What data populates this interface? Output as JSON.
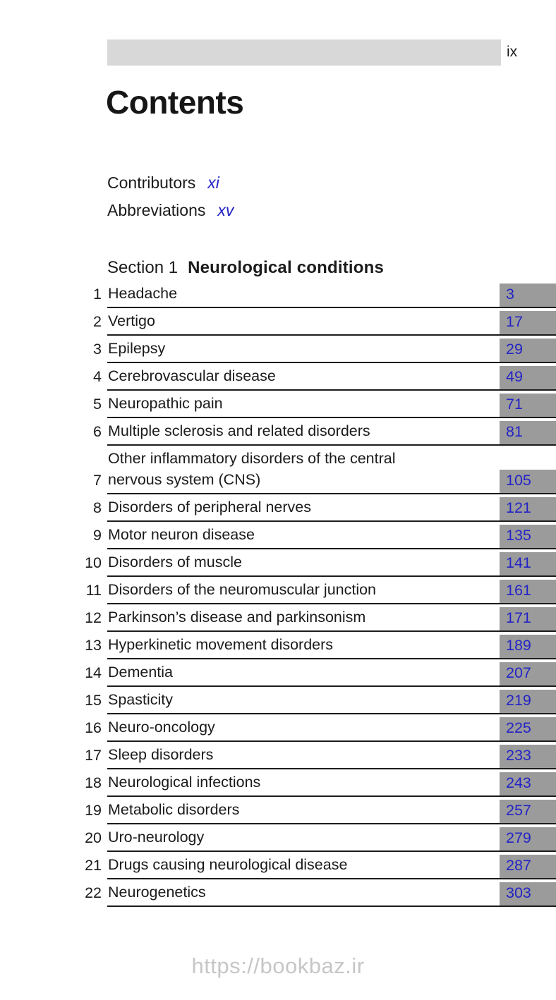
{
  "header": {
    "folio": "ix"
  },
  "title": "Contents",
  "front_matter": [
    {
      "label": "Contributors",
      "page": "xi"
    },
    {
      "label": "Abbreviations",
      "page": "xv"
    }
  ],
  "section": {
    "label": "Section 1",
    "title": "Neurological conditions"
  },
  "toc": {
    "entries": [
      {
        "number": "1",
        "title": "Headache",
        "page": "3"
      },
      {
        "number": "2",
        "title": "Vertigo",
        "page": "17"
      },
      {
        "number": "3",
        "title": "Epilepsy",
        "page": "29"
      },
      {
        "number": "4",
        "title": "Cerebrovascular disease",
        "page": "49"
      },
      {
        "number": "5",
        "title": "Neuropathic pain",
        "page": "71"
      },
      {
        "number": "6",
        "title": "Multiple sclerosis and related disorders",
        "page": "81"
      },
      {
        "number": "7",
        "title": "Other inflammatory disorders of the central\nnervous system (CNS)",
        "page": "105",
        "two_line": true
      },
      {
        "number": "8",
        "title": "Disorders of peripheral nerves",
        "page": "121"
      },
      {
        "number": "9",
        "title": "Motor neuron disease",
        "page": "135"
      },
      {
        "number": "10",
        "title": "Disorders of muscle",
        "page": "141"
      },
      {
        "number": "11",
        "title": "Disorders of the neuromuscular junction",
        "page": "161"
      },
      {
        "number": "12",
        "title": "Parkinson’s disease and parkinsonism",
        "page": "171"
      },
      {
        "number": "13",
        "title": "Hyperkinetic movement disorders",
        "page": "189"
      },
      {
        "number": "14",
        "title": "Dementia",
        "page": "207"
      },
      {
        "number": "15",
        "title": "Spasticity",
        "page": "219"
      },
      {
        "number": "16",
        "title": "Neuro-oncology",
        "page": "225"
      },
      {
        "number": "17",
        "title": "Sleep disorders",
        "page": "233"
      },
      {
        "number": "18",
        "title": "Neurological infections",
        "page": "243"
      },
      {
        "number": "19",
        "title": "Metabolic disorders",
        "page": "257"
      },
      {
        "number": "20",
        "title": "Uro-neurology",
        "page": "279"
      },
      {
        "number": "21",
        "title": "Drugs causing neurological disease",
        "page": "287"
      },
      {
        "number": "22",
        "title": "Neurogenetics",
        "page": "303"
      }
    ]
  },
  "watermark": "https://bookbaz.ir",
  "colors": {
    "page_link_blue": "#2424c6",
    "page_box_gray": "#9b9b9b",
    "header_bar_gray": "#d8d8d8",
    "rule_black": "#1c1c1c",
    "watermark_gray": "#c6c6c6"
  }
}
